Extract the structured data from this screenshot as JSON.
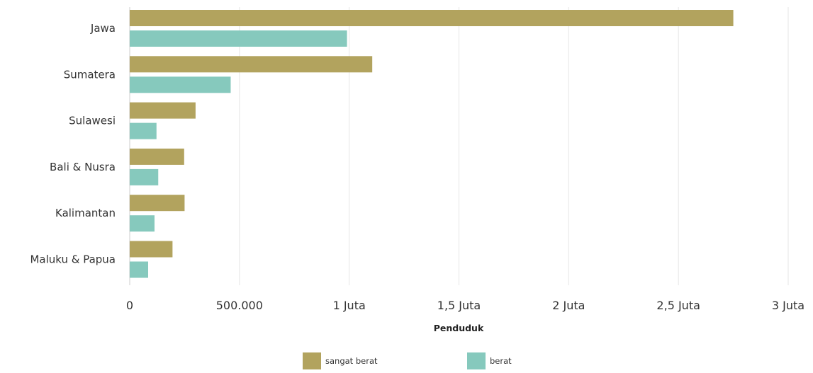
{
  "chart_data": {
    "type": "bar",
    "orientation": "horizontal",
    "categories": [
      "Jawa",
      "Sumatera",
      "Sulawesi",
      "Bali & Nusra",
      "Kalimantan",
      "Maluku & Papua"
    ],
    "series": [
      {
        "name": "sangat berat",
        "color": "#b2a35e",
        "values": [
          2750000,
          1105000,
          300000,
          248000,
          250000,
          195000
        ]
      },
      {
        "name": "berat",
        "color": "#86c9bd",
        "values": [
          990000,
          460000,
          122000,
          130000,
          113000,
          84000
        ]
      }
    ],
    "xaxis": {
      "title": "Penduduk",
      "range": [
        0,
        3000000
      ],
      "ticks": [
        {
          "value": 0,
          "label": "0"
        },
        {
          "value": 500000,
          "label": "500.000"
        },
        {
          "value": 1000000,
          "label": "1 Juta"
        },
        {
          "value": 1500000,
          "label": "1,5 Juta"
        },
        {
          "value": 2000000,
          "label": "2 Juta"
        },
        {
          "value": 2500000,
          "label": "2,5 Juta"
        },
        {
          "value": 3000000,
          "label": "3 Juta"
        }
      ]
    },
    "grid": true,
    "legend": "bottom-center"
  }
}
